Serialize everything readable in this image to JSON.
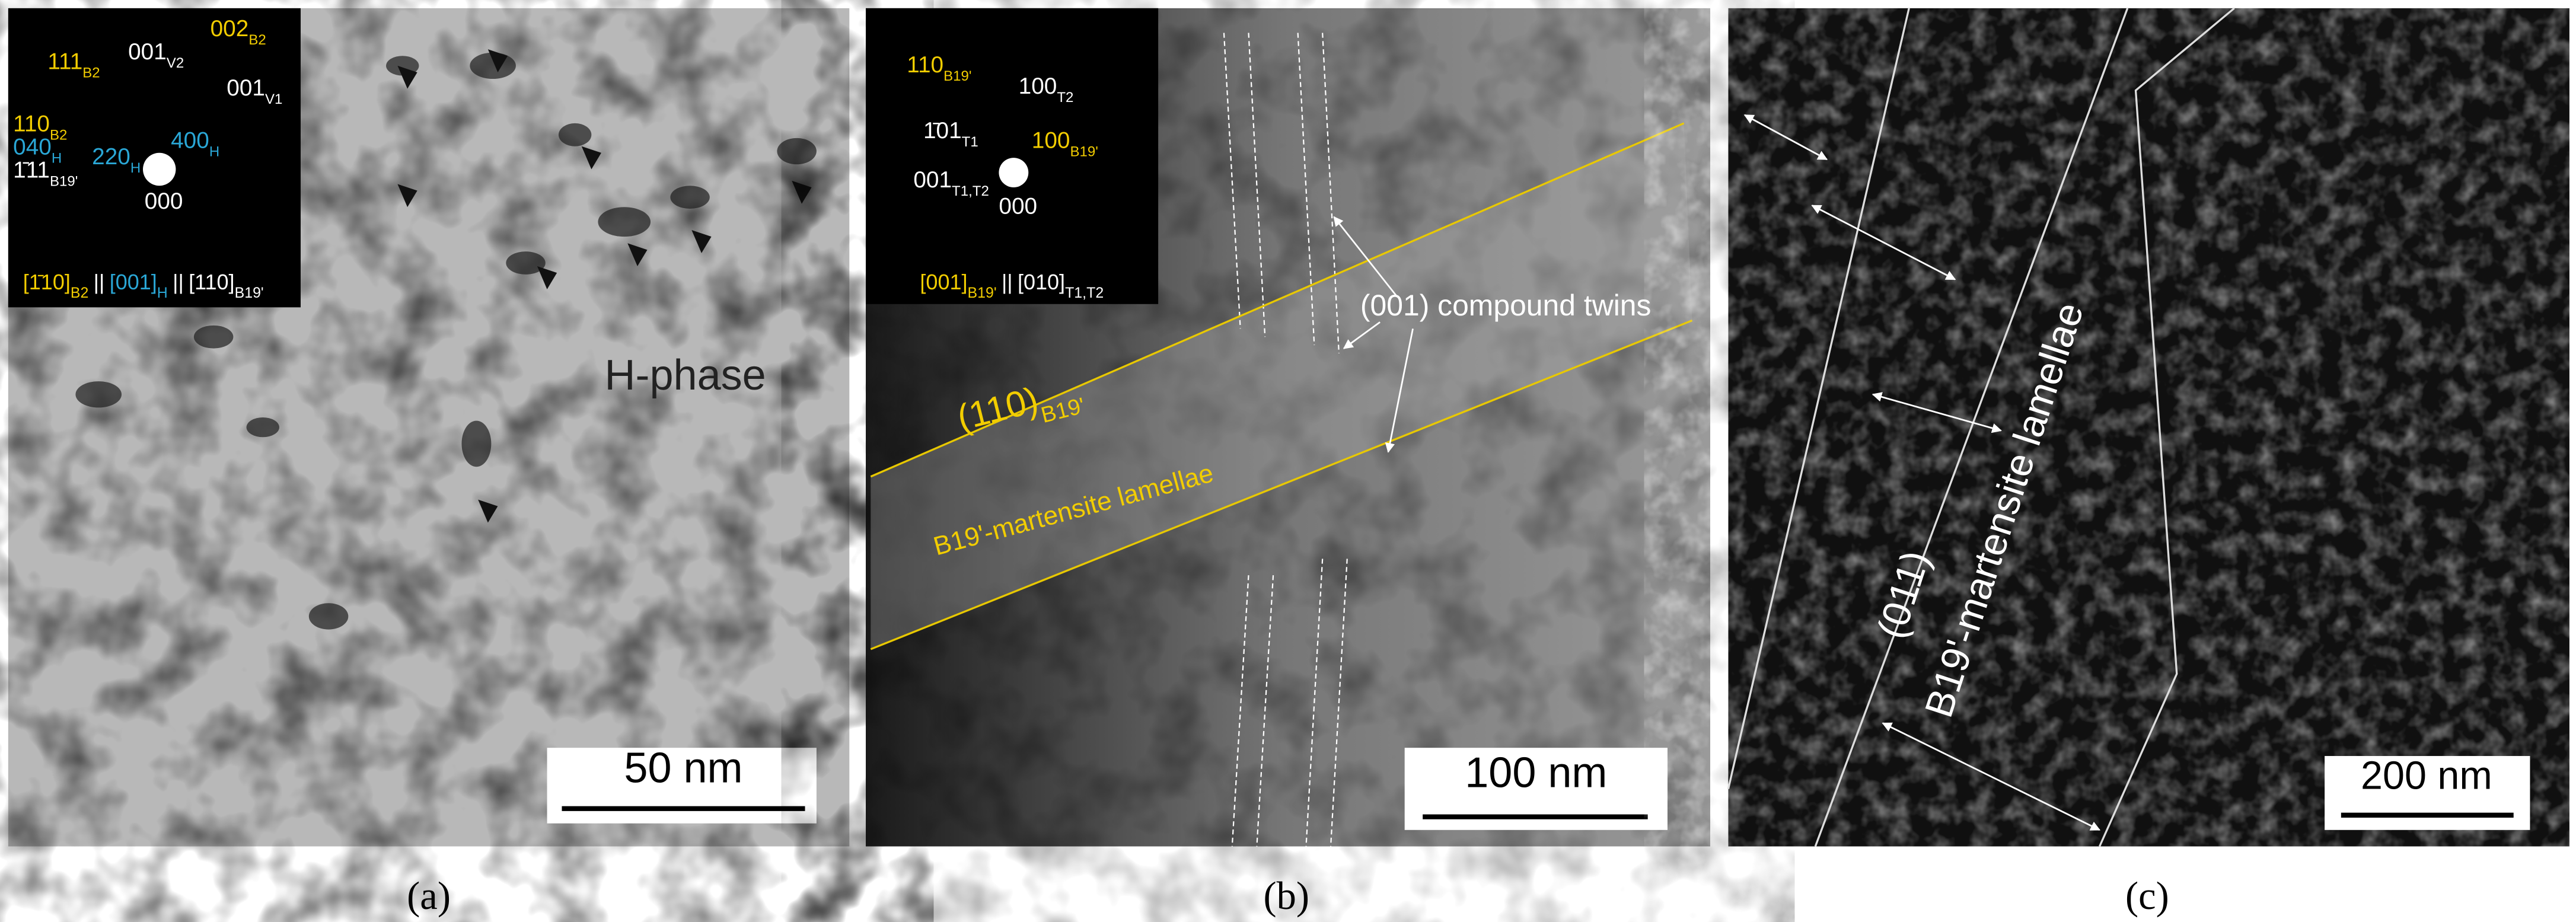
{
  "panels": [
    {
      "label": "(a)",
      "annotation": "H-phase",
      "scale_bar": "50 nm",
      "inset": {
        "spots": [
          {
            "text": "111",
            "sub": "B2"
          },
          {
            "text": "001",
            "sub": "V2"
          },
          {
            "text": "002",
            "sub": "B2"
          },
          {
            "text": "001",
            "sub": "V1"
          },
          {
            "text": "110",
            "sub": "B2"
          },
          {
            "text": "040",
            "sub": "H"
          },
          {
            "text": "220",
            "sub": "H"
          },
          {
            "text": "400",
            "sub": "H"
          },
          {
            "text": "1̄11",
            "sub": "B19'"
          },
          {
            "text": "000"
          }
        ],
        "zone_axis": [
          {
            "text": "[1̄10]",
            "sub": "B2"
          },
          {
            "text": "[001]",
            "sub": "H"
          },
          {
            "text": "[110]",
            "sub": "B19'"
          }
        ],
        "separator": "||"
      }
    },
    {
      "label": "(b)",
      "annotations": [
        {
          "text": "(001) compound twins"
        },
        {
          "text": "(110)",
          "sub": "B19'"
        },
        {
          "text": "B19'-martensite lamellae"
        }
      ],
      "scale_bar": "100 nm",
      "inset": {
        "spots": [
          {
            "text": "110",
            "sub": "B19'"
          },
          {
            "text": "100",
            "sub": "T2"
          },
          {
            "text": "1̄01",
            "sub": "T1"
          },
          {
            "text": "100",
            "sub": "B19'"
          },
          {
            "text": "001",
            "sub": "T1,T2"
          },
          {
            "text": "000"
          }
        ],
        "zone_axis": [
          {
            "text": "[001]",
            "sub": "B19'"
          },
          {
            "text": "[010]",
            "sub": "T1,T2"
          }
        ],
        "separator": "||"
      }
    },
    {
      "label": "(c)",
      "annotations": [
        {
          "text": "(011)"
        },
        {
          "text": "B19'-martensite lamellae"
        }
      ],
      "scale_bar": "200 nm"
    }
  ]
}
